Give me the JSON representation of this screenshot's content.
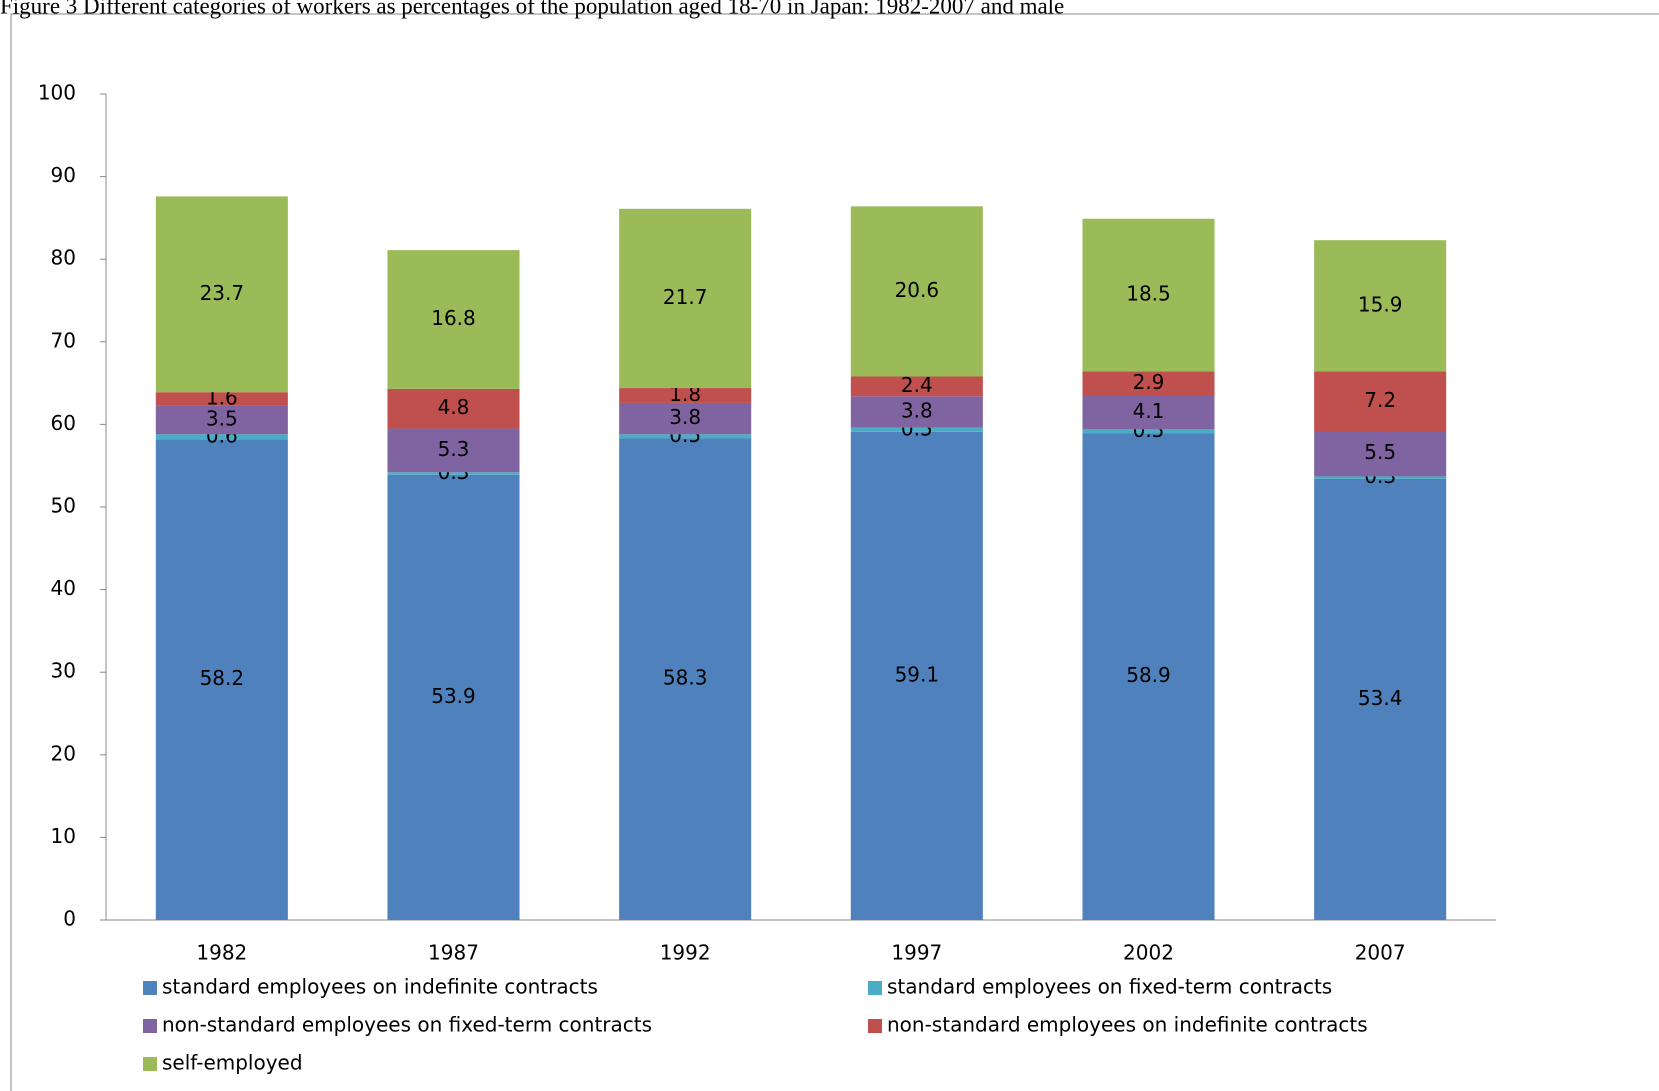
{
  "chart_data": {
    "type": "stacked-bar",
    "title": "Figure 3 Different categories of workers as percentages of the population aged 18-70 in Japan: 1982-2007 and male",
    "categories": [
      "1982",
      "1987",
      "1992",
      "1997",
      "2002",
      "2007"
    ],
    "series": [
      {
        "name": "standard employees on indefinite contracts",
        "color": "#4f81bd",
        "values": [
          58.2,
          53.9,
          58.3,
          59.1,
          58.9,
          53.4
        ]
      },
      {
        "name": "standard employees on fixed-term contracts",
        "color": "#4bacc6",
        "values": [
          0.6,
          0.3,
          0.5,
          0.5,
          0.5,
          0.3
        ]
      },
      {
        "name": "non-standard employees on fixed-term contracts",
        "color": "#8064a2",
        "values": [
          3.5,
          5.3,
          3.8,
          3.8,
          4.1,
          5.5
        ]
      },
      {
        "name": "non-standard employees on indefinite contracts",
        "color": "#c0504d",
        "values": [
          1.6,
          4.8,
          1.8,
          2.4,
          2.9,
          7.2
        ]
      },
      {
        "name": "self-employed",
        "color": "#9bbb59",
        "values": [
          23.7,
          16.8,
          21.7,
          20.6,
          18.5,
          15.9
        ]
      }
    ],
    "ylim": [
      0,
      100
    ],
    "yticks": [
      0,
      10,
      20,
      30,
      40,
      50,
      60,
      70,
      80,
      90,
      100
    ],
    "grid": false,
    "legend": "bottom"
  }
}
